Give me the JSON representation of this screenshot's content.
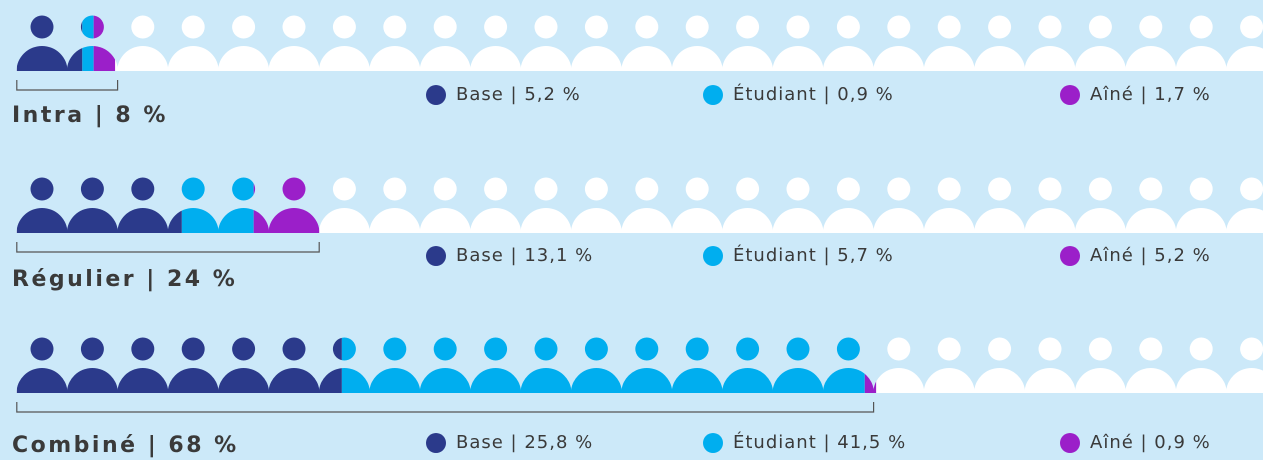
{
  "chart_data": [
    {
      "type": "pictogram",
      "title": "Intra | 8 %",
      "total": 8,
      "xlim": [
        0,
        100
      ],
      "series": [
        {
          "name": "Base | 5,2 %",
          "color": "#2b3a8b",
          "values": [
            5.2
          ]
        },
        {
          "name": "Étudiant | 0,9 %",
          "color": "#00aeef",
          "values": [
            0.9
          ]
        },
        {
          "name": "Aîné | 1,7 %",
          "color": "#9b1fc9",
          "values": [
            1.7
          ]
        }
      ]
    },
    {
      "type": "pictogram",
      "title": "Régulier | 24 %",
      "total": 24,
      "xlim": [
        0,
        100
      ],
      "series": [
        {
          "name": "Base | 13,1 %",
          "color": "#2b3a8b",
          "values": [
            13.1
          ]
        },
        {
          "name": "Étudiant | 5,7 %",
          "color": "#00aeef",
          "values": [
            5.7
          ]
        },
        {
          "name": "Aîné | 5,2 %",
          "color": "#9b1fc9",
          "values": [
            5.2
          ]
        }
      ]
    },
    {
      "type": "pictogram",
      "title": "Combiné | 68 %",
      "total": 68,
      "xlim": [
        0,
        100
      ],
      "series": [
        {
          "name": "Base | 25,8 %",
          "color": "#2b3a8b",
          "values": [
            25.8
          ]
        },
        {
          "name": "Étudiant | 41,5 %",
          "color": "#00aeef",
          "values": [
            41.5
          ]
        },
        {
          "name": "Aîné | 0,9 %",
          "color": "#9b1fc9",
          "values": [
            0.9
          ]
        }
      ]
    }
  ]
}
